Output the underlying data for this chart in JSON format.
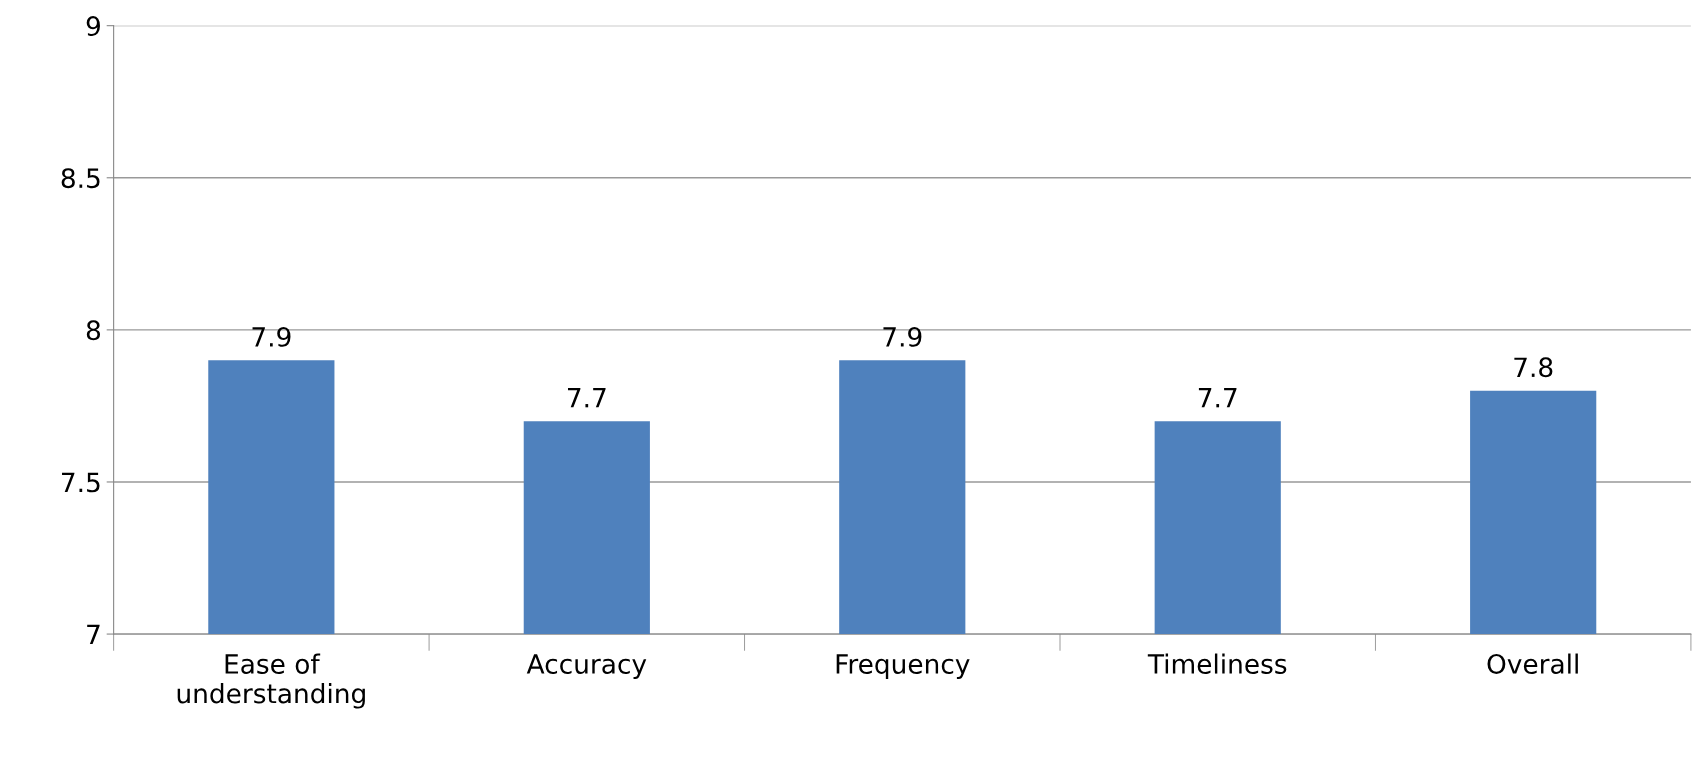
{
  "chart_data": {
    "type": "bar",
    "categories": [
      "Ease of\nunderstanding",
      "Accuracy",
      "Frequency",
      "Timeliness",
      "Overall"
    ],
    "values": [
      7.9,
      7.7,
      7.9,
      7.7,
      7.8
    ],
    "color": "#4f81bd",
    "ylim": [
      7,
      9
    ],
    "yticks": [
      7,
      7.5,
      8,
      8.5,
      9
    ],
    "grid": "y",
    "data_labels": true
  }
}
